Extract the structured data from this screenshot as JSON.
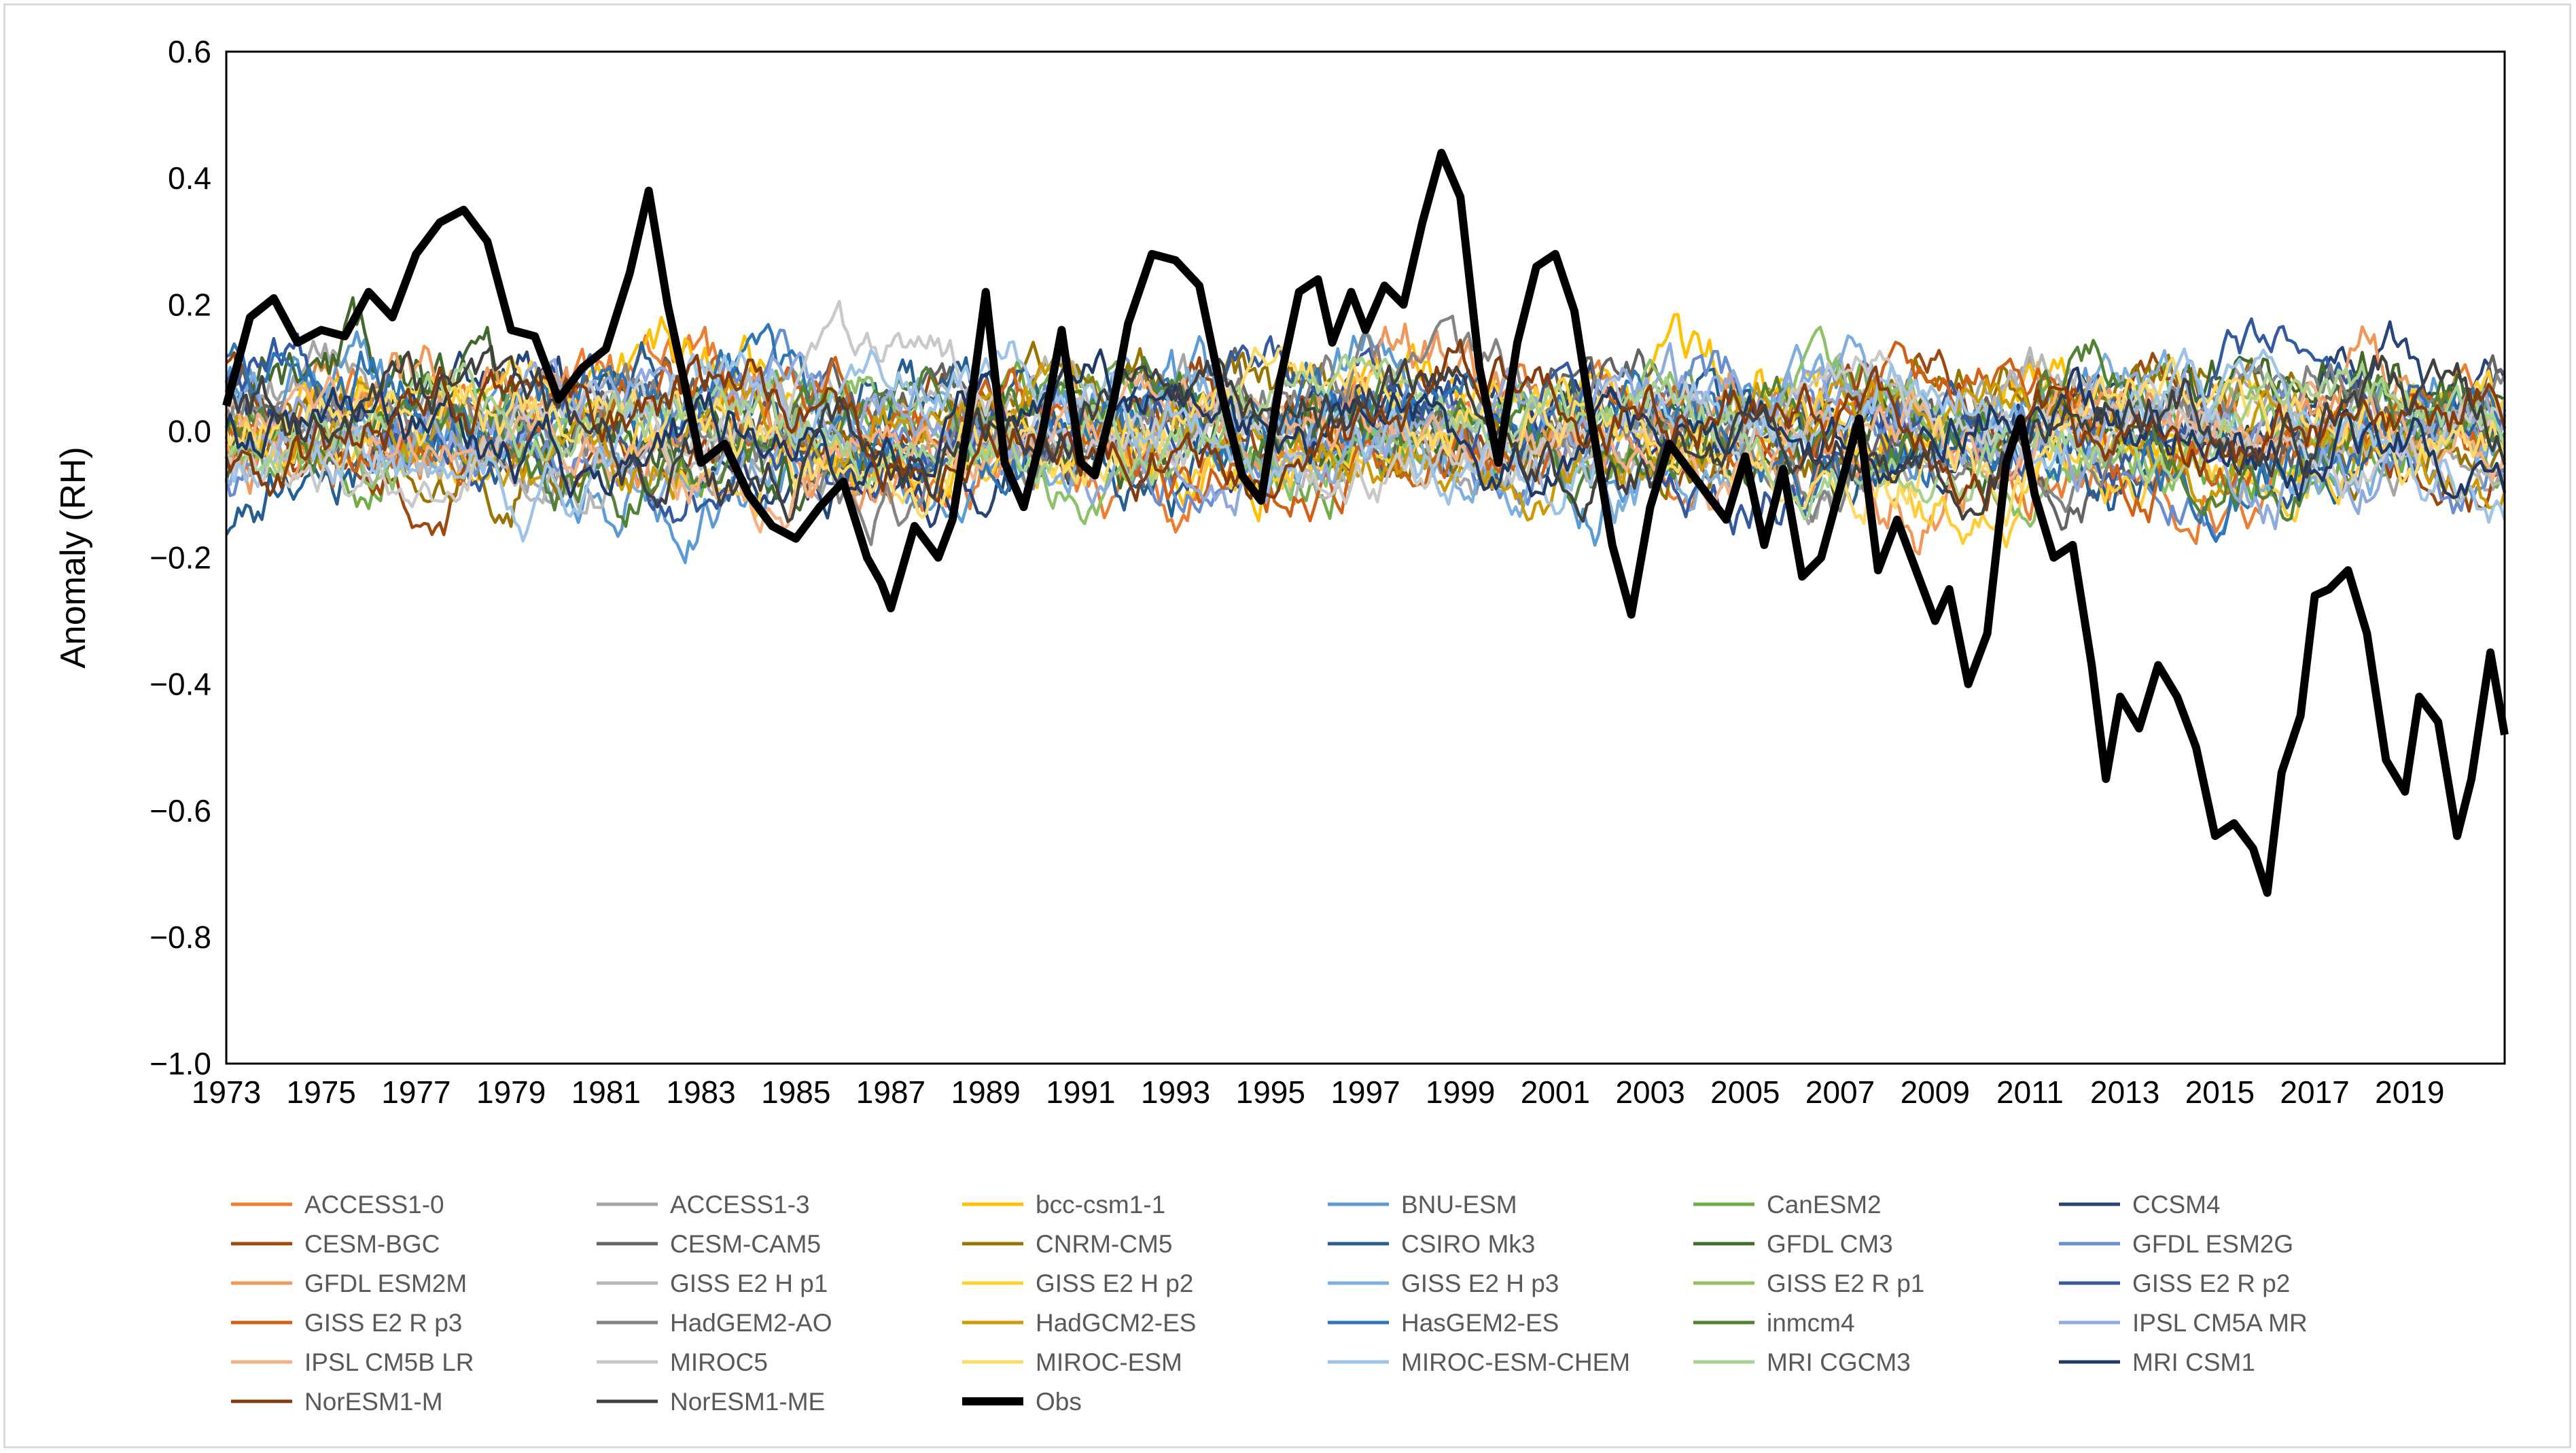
{
  "chart_data": {
    "type": "line",
    "title": "",
    "xlabel": "",
    "ylabel": "Anomaly (RH)",
    "ylim": [
      -1.0,
      0.6
    ],
    "xlim": [
      1973,
      2021
    ],
    "yticks": [
      "0.6",
      "0.4",
      "0.2",
      "0.0",
      "−0.2",
      "−0.4",
      "−0.6",
      "−0.8",
      "−1.0"
    ],
    "ytick_values": [
      0.6,
      0.4,
      0.2,
      0.0,
      -0.2,
      -0.4,
      -0.6,
      -0.8,
      -1.0
    ],
    "xticks": [
      "1973",
      "1975",
      "1977",
      "1979",
      "1981",
      "1983",
      "1985",
      "1987",
      "1989",
      "1991",
      "1993",
      "1995",
      "1997",
      "1999",
      "2001",
      "2003",
      "2005",
      "2007",
      "2009",
      "2011",
      "2013",
      "2015",
      "2017",
      "2019"
    ],
    "xtick_values": [
      1973,
      1975,
      1977,
      1979,
      1981,
      1983,
      1985,
      1987,
      1989,
      1991,
      1993,
      1995,
      1997,
      1999,
      2001,
      2003,
      2005,
      2007,
      2009,
      2011,
      2013,
      2015,
      2017,
      2019
    ],
    "legend_position": "bottom",
    "series": [
      {
        "name": "ACCESS1-0",
        "color": "#ED7D31",
        "seed": 1,
        "amp": 0.11
      },
      {
        "name": "ACCESS1-3",
        "color": "#A5A5A5",
        "seed": 2,
        "amp": 0.1
      },
      {
        "name": "bcc-csm1-1",
        "color": "#FFC000",
        "seed": 3,
        "amp": 0.12
      },
      {
        "name": "BNU-ESM",
        "color": "#5B9BD5",
        "seed": 4,
        "amp": 0.12
      },
      {
        "name": "CanESM2",
        "color": "#70AD47",
        "seed": 5,
        "amp": 0.1
      },
      {
        "name": "CCSM4",
        "color": "#264478",
        "seed": 6,
        "amp": 0.1
      },
      {
        "name": "CESM-BGC",
        "color": "#9E480E",
        "seed": 7,
        "amp": 0.1
      },
      {
        "name": "CESM-CAM5",
        "color": "#636363",
        "seed": 8,
        "amp": 0.1
      },
      {
        "name": "CNRM-CM5",
        "color": "#997300",
        "seed": 9,
        "amp": 0.11
      },
      {
        "name": "CSIRO Mk3",
        "color": "#255E91",
        "seed": 10,
        "amp": 0.11
      },
      {
        "name": "GFDL CM3",
        "color": "#43682B",
        "seed": 11,
        "amp": 0.12
      },
      {
        "name": "GFDL ESM2G",
        "color": "#698ED0",
        "seed": 12,
        "amp": 0.1
      },
      {
        "name": "GFDL ESM2M",
        "color": "#F1975A",
        "seed": 13,
        "amp": 0.12
      },
      {
        "name": "GISS E2 H p1",
        "color": "#B7B7B7",
        "seed": 14,
        "amp": 0.09
      },
      {
        "name": "GISS E2 H p2",
        "color": "#FFCD33",
        "seed": 15,
        "amp": 0.1
      },
      {
        "name": "GISS E2 H p3",
        "color": "#7CAFDD",
        "seed": 16,
        "amp": 0.1
      },
      {
        "name": "GISS E2 R p1",
        "color": "#8CC168",
        "seed": 17,
        "amp": 0.09
      },
      {
        "name": "GISS E2 R p2",
        "color": "#335AA1",
        "seed": 18,
        "amp": 0.1
      },
      {
        "name": "GISS E2 R p3",
        "color": "#D26012",
        "seed": 19,
        "amp": 0.1
      },
      {
        "name": "HadGEM2-AO",
        "color": "#848484",
        "seed": 20,
        "amp": 0.1
      },
      {
        "name": "HadGCM2-ES",
        "color": "#CC9A00",
        "seed": 21,
        "amp": 0.1
      },
      {
        "name": "HasGEM2-ES",
        "color": "#2E75B6",
        "seed": 22,
        "amp": 0.12
      },
      {
        "name": "inmcm4",
        "color": "#548235",
        "seed": 23,
        "amp": 0.1
      },
      {
        "name": "IPSL CM5A MR",
        "color": "#8FAADC",
        "seed": 24,
        "amp": 0.1
      },
      {
        "name": "IPSL CM5B LR",
        "color": "#F4B183",
        "seed": 25,
        "amp": 0.09
      },
      {
        "name": "MIROC5",
        "color": "#C9C9C9",
        "seed": 26,
        "amp": 0.09
      },
      {
        "name": "MIROC-ESM",
        "color": "#FFD966",
        "seed": 27,
        "amp": 0.1
      },
      {
        "name": "MIROC-ESM-CHEM",
        "color": "#9DC3E6",
        "seed": 28,
        "amp": 0.1
      },
      {
        "name": "MRI CGCM3",
        "color": "#A9D18E",
        "seed": 29,
        "amp": 0.09
      },
      {
        "name": "MRI CSM1",
        "color": "#203864",
        "seed": 30,
        "amp": 0.1
      },
      {
        "name": "NorESM1-M",
        "color": "#843C0C",
        "seed": 31,
        "amp": 0.1
      },
      {
        "name": "NorESM1-ME",
        "color": "#404040",
        "seed": 32,
        "amp": 0.1
      }
    ],
    "obs": {
      "name": "Obs",
      "color": "#000000",
      "x": [
        1973.0,
        1973.5,
        1974.0,
        1974.5,
        1975.0,
        1975.5,
        1976.0,
        1976.5,
        1977.0,
        1977.5,
        1978.0,
        1978.5,
        1979.0,
        1979.5,
        1980.0,
        1980.5,
        1981.0,
        1981.5,
        1981.9,
        1982.3,
        1982.7,
        1983.0,
        1983.5,
        1984.0,
        1984.5,
        1985.0,
        1985.5,
        1986.0,
        1986.5,
        1986.8,
        1987.0,
        1987.5,
        1988.0,
        1988.3,
        1988.7,
        1989.0,
        1989.4,
        1989.8,
        1990.2,
        1990.6,
        1991.0,
        1991.3,
        1991.7,
        1992.0,
        1992.5,
        1993.0,
        1993.5,
        1994.0,
        1994.4,
        1994.8,
        1995.2,
        1995.6,
        1996.0,
        1996.3,
        1996.7,
        1997.0,
        1997.4,
        1997.8,
        1998.2,
        1998.6,
        1999.0,
        1999.4,
        1999.8,
        2000.2,
        2000.6,
        2001.0,
        2001.4,
        2001.8,
        2002.2,
        2002.6,
        2003.0,
        2003.4,
        2003.8,
        2004.2,
        2004.6,
        2005.0,
        2005.4,
        2005.8,
        2006.2,
        2006.6,
        2007.0,
        2007.4,
        2007.8,
        2008.2,
        2008.6,
        2009.0,
        2009.3,
        2009.7,
        2010.1,
        2010.5,
        2010.8,
        2011.1,
        2011.5,
        2011.9,
        2012.3,
        2012.6,
        2012.9,
        2013.3,
        2013.7,
        2014.1,
        2014.5,
        2014.9,
        2015.3,
        2015.7,
        2016.0,
        2016.3,
        2016.7,
        2017.0,
        2017.3,
        2017.7,
        2018.1,
        2018.5,
        2018.9,
        2019.2,
        2019.6,
        2020.0,
        2020.3,
        2020.7,
        2021.0
      ],
      "y": [
        0.04,
        0.18,
        0.21,
        0.14,
        0.16,
        0.15,
        0.22,
        0.18,
        0.28,
        0.33,
        0.35,
        0.3,
        0.16,
        0.15,
        0.05,
        0.1,
        0.13,
        0.25,
        0.38,
        0.2,
        0.06,
        -0.05,
        -0.02,
        -0.1,
        -0.15,
        -0.17,
        -0.12,
        -0.08,
        -0.2,
        -0.24,
        -0.28,
        -0.15,
        -0.2,
        -0.14,
        0.05,
        0.22,
        -0.05,
        -0.12,
        0.0,
        0.16,
        -0.05,
        -0.07,
        0.05,
        0.17,
        0.28,
        0.27,
        0.23,
        0.05,
        -0.07,
        -0.11,
        0.08,
        0.22,
        0.24,
        0.14,
        0.22,
        0.16,
        0.23,
        0.2,
        0.33,
        0.44,
        0.37,
        0.1,
        -0.05,
        0.14,
        0.26,
        0.28,
        0.19,
        0.0,
        -0.18,
        -0.29,
        -0.12,
        -0.02,
        -0.06,
        -0.1,
        -0.14,
        -0.04,
        -0.18,
        -0.06,
        -0.23,
        -0.2,
        -0.09,
        0.02,
        -0.22,
        -0.14,
        -0.22,
        -0.3,
        -0.25,
        -0.4,
        -0.32,
        -0.05,
        0.02,
        -0.1,
        -0.2,
        -0.18,
        -0.37,
        -0.55,
        -0.42,
        -0.47,
        -0.37,
        -0.42,
        -0.5,
        -0.64,
        -0.62,
        -0.66,
        -0.73,
        -0.54,
        -0.45,
        -0.26,
        -0.25,
        -0.22,
        -0.32,
        -0.52,
        -0.57,
        -0.42,
        -0.46,
        -0.64,
        -0.55,
        -0.35,
        -0.48
      ]
    }
  }
}
